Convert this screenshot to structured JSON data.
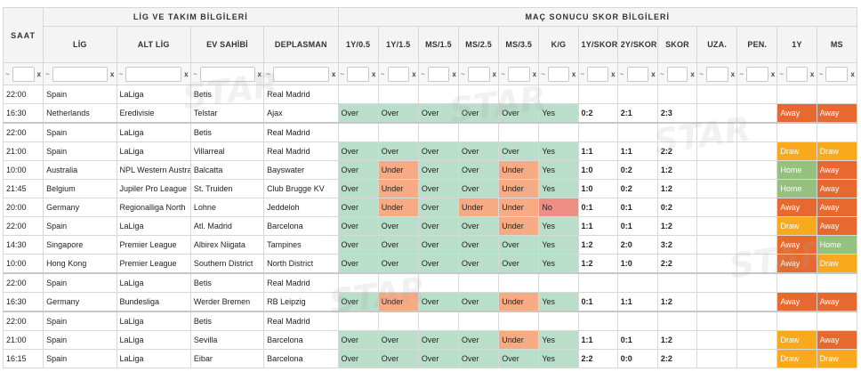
{
  "groups": {
    "info": "LİG VE TAKIM BİLGİLERİ",
    "score": "MAÇ SONUCU SKOR BİLGİLERİ"
  },
  "columns": {
    "saat": "SAAT",
    "lig": "LİG",
    "alt_lig": "ALT LİG",
    "ev": "EV SAHİBİ",
    "dep": "DEPLASMAN",
    "y1_05": "1Y/0.5",
    "y1_15": "1Y/1.5",
    "ms_15": "MS/1.5",
    "ms_25": "MS/2.5",
    "ms_35": "MS/3.5",
    "kg": "K/G",
    "y1_skor": "1Y/SKOR",
    "y2_skor": "2Y/SKOR",
    "skor": "SKOR",
    "uza": "UZA.",
    "pen": "PEN.",
    "y1": "1Y",
    "ms": "MS"
  },
  "filter": {
    "tilde": "~",
    "clear": "x"
  },
  "watermark": "STAR",
  "rows": [
    {
      "saat": "22:00",
      "lig": "Spain",
      "alt": "LaLiga",
      "ev": "Betis",
      "dep": "Real Madrid",
      "v": [
        "",
        "",
        "",
        "",
        "",
        "",
        "",
        "",
        "",
        "",
        "",
        "",
        ""
      ]
    },
    {
      "saat": "16:30",
      "lig": "Netherlands",
      "alt": "Eredivisie",
      "ev": "Telstar",
      "dep": "Ajax",
      "v": [
        "Over",
        "Over",
        "Over",
        "Over",
        "Over",
        "Yes",
        "0:2",
        "2:1",
        "2:3",
        "",
        "",
        "Away",
        "Away"
      ]
    },
    {
      "saat": "22:00",
      "lig": "Spain",
      "alt": "LaLiga",
      "ev": "Betis",
      "dep": "Real Madrid",
      "sep": true,
      "v": [
        "",
        "",
        "",
        "",
        "",
        "",
        "",
        "",
        "",
        "",
        "",
        "",
        ""
      ]
    },
    {
      "saat": "21:00",
      "lig": "Spain",
      "alt": "LaLiga",
      "ev": "Villarreal",
      "dep": "Real Madrid",
      "v": [
        "Over",
        "Over",
        "Over",
        "Over",
        "Over",
        "Yes",
        "1:1",
        "1:1",
        "2:2",
        "",
        "",
        "Draw",
        "Draw"
      ]
    },
    {
      "saat": "10:00",
      "lig": "Australia",
      "alt": "NPL Western Australia",
      "ev": "Balcatta",
      "dep": "Bayswater",
      "v": [
        "Over",
        "Under",
        "Over",
        "Over",
        "Under",
        "Yes",
        "1:0",
        "0:2",
        "1:2",
        "",
        "",
        "Home",
        "Away"
      ]
    },
    {
      "saat": "21:45",
      "lig": "Belgium",
      "alt": "Jupiler Pro League",
      "ev": "St. Truiden",
      "dep": "Club Brugge KV",
      "v": [
        "Over",
        "Under",
        "Over",
        "Over",
        "Under",
        "Yes",
        "1:0",
        "0:2",
        "1:2",
        "",
        "",
        "Home",
        "Away"
      ]
    },
    {
      "saat": "20:00",
      "lig": "Germany",
      "alt": "Regionalliga North",
      "ev": "Lohne",
      "dep": "Jeddeloh",
      "v": [
        "Over",
        "Under",
        "Over",
        "Under",
        "Under",
        "No",
        "0:1",
        "0:1",
        "0:2",
        "",
        "",
        "Away",
        "Away"
      ]
    },
    {
      "saat": "22:00",
      "lig": "Spain",
      "alt": "LaLiga",
      "ev": "Atl. Madrid",
      "dep": "Barcelona",
      "v": [
        "Over",
        "Over",
        "Over",
        "Over",
        "Under",
        "Yes",
        "1:1",
        "0:1",
        "1:2",
        "",
        "",
        "Draw",
        "Away"
      ]
    },
    {
      "saat": "14:30",
      "lig": "Singapore",
      "alt": "Premier League",
      "ev": "Albirex Niigata",
      "dep": "Tampines",
      "v": [
        "Over",
        "Over",
        "Over",
        "Over",
        "Over",
        "Yes",
        "1:2",
        "2:0",
        "3:2",
        "",
        "",
        "Away",
        "Home"
      ]
    },
    {
      "saat": "10:00",
      "lig": "Hong Kong",
      "alt": "Premier League",
      "ev": "Southern District",
      "dep": "North District",
      "v": [
        "Over",
        "Over",
        "Over",
        "Over",
        "Over",
        "Yes",
        "1:2",
        "1:0",
        "2:2",
        "",
        "",
        "Away",
        "Draw"
      ]
    },
    {
      "saat": "22:00",
      "lig": "Spain",
      "alt": "LaLiga",
      "ev": "Betis",
      "dep": "Real Madrid",
      "sep": true,
      "v": [
        "",
        "",
        "",
        "",
        "",
        "",
        "",
        "",
        "",
        "",
        "",
        "",
        ""
      ]
    },
    {
      "saat": "16:30",
      "lig": "Germany",
      "alt": "Bundesliga",
      "ev": "Werder Bremen",
      "dep": "RB Leipzig",
      "v": [
        "Over",
        "Under",
        "Over",
        "Over",
        "Under",
        "Yes",
        "0:1",
        "1:1",
        "1:2",
        "",
        "",
        "Away",
        "Away"
      ]
    },
    {
      "saat": "22:00",
      "lig": "Spain",
      "alt": "LaLiga",
      "ev": "Betis",
      "dep": "Real Madrid",
      "sep": true,
      "v": [
        "",
        "",
        "",
        "",
        "",
        "",
        "",
        "",
        "",
        "",
        "",
        "",
        ""
      ]
    },
    {
      "saat": "21:00",
      "lig": "Spain",
      "alt": "LaLiga",
      "ev": "Sevilla",
      "dep": "Barcelona",
      "v": [
        "Over",
        "Over",
        "Over",
        "Over",
        "Under",
        "Yes",
        "1:1",
        "0:1",
        "1:2",
        "",
        "",
        "Draw",
        "Away"
      ]
    },
    {
      "saat": "16:15",
      "lig": "Spain",
      "alt": "LaLiga",
      "ev": "Eibar",
      "dep": "Barcelona",
      "v": [
        "Over",
        "Over",
        "Over",
        "Over",
        "Over",
        "Yes",
        "2:2",
        "0:0",
        "2:2",
        "",
        "",
        "Draw",
        "Draw"
      ]
    }
  ]
}
